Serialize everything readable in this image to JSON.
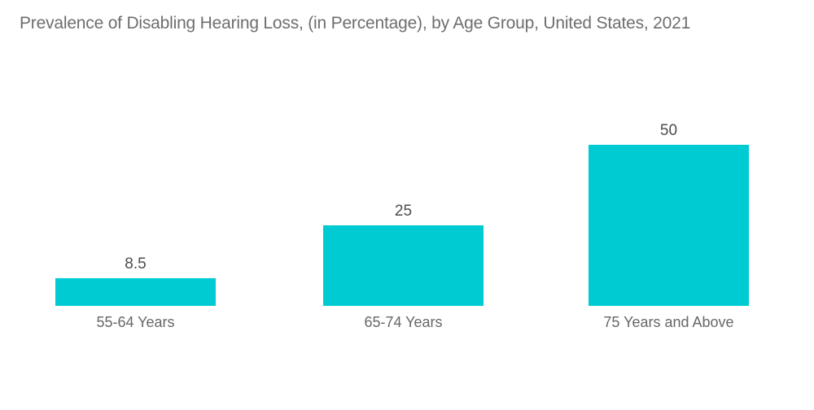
{
  "title": "Prevalence of Disabling Hearing Loss, (in Percentage), by Age Group, United States, 2021",
  "chart_data": {
    "type": "bar",
    "title": "Prevalence of Disabling Hearing Loss, (in Percentage), by Age Group, United States, 2021",
    "categories": [
      "55-64 Years",
      "65-74 Years",
      "75 Years and Above"
    ],
    "values": [
      8.5,
      25,
      50
    ],
    "value_labels": [
      "8.5",
      "25",
      "50"
    ],
    "xlabel": "",
    "ylabel": "",
    "ylim": [
      0,
      50
    ],
    "grid": false,
    "axes_visible": false,
    "legend": "none",
    "bar_color": "#00CBD2",
    "background_color": "#FFFFFF",
    "title_color": "#6D6E70",
    "value_label_color": "#4B4C4E",
    "category_label_color": "#66676A"
  }
}
